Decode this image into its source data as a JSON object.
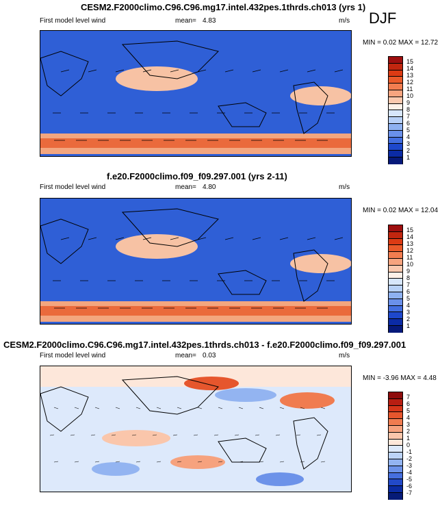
{
  "season": "DJF",
  "panels": [
    {
      "title": "CESM2.F2000climo.C96.C96.mg17.intel.432pes.1thrds.ch013 (yrs 1)",
      "var_label": "First model level wind",
      "mean_label": "mean=",
      "mean": "4.83",
      "units": "m/s",
      "minmax": "MIN =  0.02 MAX =  12.72",
      "colorbar_labels": [
        "15",
        "14",
        "13",
        "12",
        "11",
        "10",
        "9",
        "8",
        "7",
        "6",
        "5",
        "4",
        "3",
        "2",
        "1"
      ],
      "colors": [
        "#9e0f0f",
        "#c1260f",
        "#dc3b14",
        "#ea5a2a",
        "#f27d50",
        "#f7a47f",
        "#fac8ae",
        "#fdf0e8",
        "#d7e6fb",
        "#b7d0f7",
        "#8eb1f1",
        "#6a90ea",
        "#436ee0",
        "#1e48cc",
        "#0b2ba6",
        "#06197a"
      ]
    },
    {
      "title": "f.e20.F2000climo.f09_f09.297.001 (yrs 2-11)",
      "var_label": "First model level wind",
      "mean_label": "mean=",
      "mean": "4.80",
      "units": "m/s",
      "minmax": "MIN =  0.02 MAX =  12.04",
      "colorbar_labels": [
        "15",
        "14",
        "13",
        "12",
        "11",
        "10",
        "9",
        "8",
        "7",
        "6",
        "5",
        "4",
        "3",
        "2",
        "1"
      ],
      "colors": [
        "#9e0f0f",
        "#c1260f",
        "#dc3b14",
        "#ea5a2a",
        "#f27d50",
        "#f7a47f",
        "#fac8ae",
        "#fdf0e8",
        "#d7e6fb",
        "#b7d0f7",
        "#8eb1f1",
        "#6a90ea",
        "#436ee0",
        "#1e48cc",
        "#0b2ba6",
        "#06197a"
      ]
    },
    {
      "title": "CESM2.F2000climo.C96.C96.mg17.intel.432pes.1thrds.ch013 - f.e20.F2000climo.f09_f09.297.001",
      "var_label": "First model level wind",
      "mean_label": "mean=",
      "mean": "0.03",
      "units": "m/s",
      "minmax": "MIN =  -3.96 MAX =   4.48",
      "colorbar_labels": [
        "7",
        "6",
        "5",
        "4",
        "3",
        "2",
        "1",
        "0",
        "-1",
        "-2",
        "-3",
        "-4",
        "-5",
        "-6",
        "-7"
      ],
      "colors": [
        "#8e0c0c",
        "#b81e12",
        "#d6361a",
        "#e6562d",
        "#f07c50",
        "#f6a27e",
        "#fac6ab",
        "#fde7da",
        "#dde9fb",
        "#bcd3f7",
        "#93b4f1",
        "#6c92e9",
        "#466fde",
        "#2249c8",
        "#0b2ba2",
        "#061b78"
      ]
    }
  ]
}
